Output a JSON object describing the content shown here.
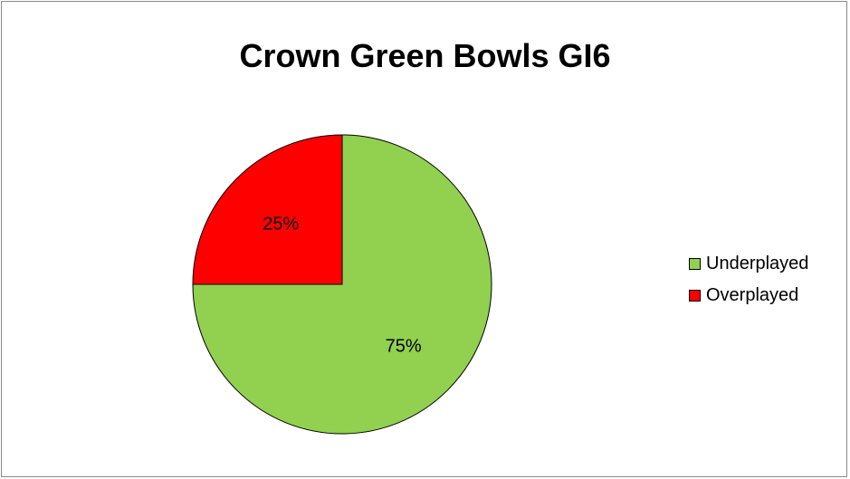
{
  "chart_data": {
    "type": "pie",
    "title": "Crown Green Bowls GI6",
    "slices": [
      {
        "name": "Underplayed",
        "value": 75,
        "label": "75%",
        "color": "#92d050"
      },
      {
        "name": "Overplayed",
        "value": 25,
        "label": "25%",
        "color": "#ff0000"
      }
    ],
    "start_angle_deg": 0,
    "direction": "clockwise",
    "legend_position": "right",
    "data_labels": "percent"
  }
}
